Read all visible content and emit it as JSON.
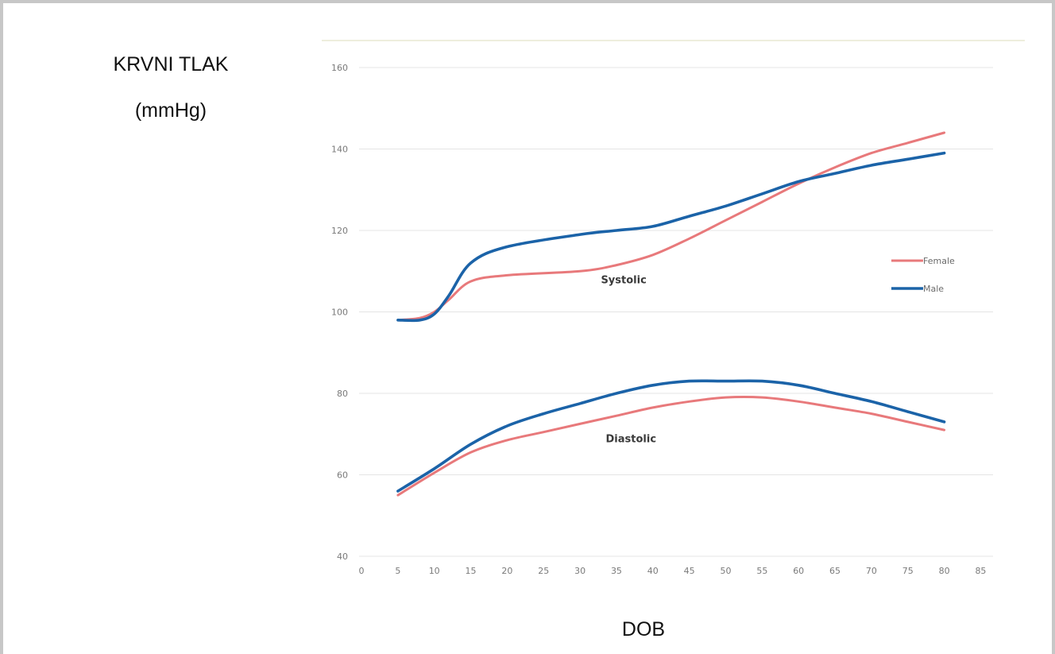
{
  "chart_data": {
    "type": "line",
    "ylabel_line1": "KRVNI TLAK",
    "ylabel_line2": "(mmHg)",
    "xlabel": "DOB",
    "xlim": [
      0,
      85
    ],
    "ylim": [
      40,
      160
    ],
    "x_ticks": [
      0,
      5,
      10,
      15,
      20,
      25,
      30,
      35,
      40,
      45,
      50,
      55,
      60,
      65,
      70,
      75,
      80,
      85
    ],
    "y_ticks": [
      40,
      60,
      80,
      100,
      120,
      140,
      160
    ],
    "grid": "horizontal",
    "legend_position": "right",
    "annotations": [
      {
        "text": "Systolic",
        "x": 36,
        "y": 107
      },
      {
        "text": "Diastolic",
        "x": 37,
        "y": 68
      }
    ],
    "legend": [
      {
        "name": "Female",
        "color": "#e8797b"
      },
      {
        "name": "Male",
        "color": "#1b63a8"
      }
    ],
    "series": [
      {
        "group": "Systolic",
        "name": "Female",
        "color": "#e8797b",
        "x": [
          5,
          8,
          10,
          12,
          15,
          20,
          30,
          35,
          40,
          45,
          50,
          55,
          60,
          65,
          70,
          75,
          80
        ],
        "y": [
          98,
          98.5,
          100,
          103,
          107.5,
          109,
          110,
          111.5,
          114,
          118,
          122.5,
          127,
          131.5,
          135.5,
          139,
          141.5,
          144
        ]
      },
      {
        "group": "Systolic",
        "name": "Male",
        "color": "#1b63a8",
        "x": [
          5,
          8,
          10,
          12,
          15,
          20,
          30,
          35,
          40,
          45,
          50,
          55,
          60,
          65,
          70,
          75,
          80
        ],
        "y": [
          98,
          98,
          99.5,
          104,
          112,
          116,
          119,
          120,
          121,
          123.5,
          126,
          129,
          132,
          134,
          136,
          137.5,
          139
        ]
      },
      {
        "group": "Diastolic",
        "name": "Female",
        "color": "#e8797b",
        "x": [
          5,
          10,
          15,
          20,
          25,
          30,
          35,
          40,
          45,
          50,
          55,
          60,
          65,
          70,
          75,
          80
        ],
        "y": [
          55,
          60.5,
          65.5,
          68.5,
          70.5,
          72.5,
          74.5,
          76.5,
          78,
          79,
          79,
          78,
          76.5,
          75,
          73,
          71
        ]
      },
      {
        "group": "Diastolic",
        "name": "Male",
        "color": "#1b63a8",
        "x": [
          5,
          10,
          15,
          20,
          25,
          30,
          35,
          40,
          45,
          50,
          55,
          60,
          65,
          70,
          75,
          80
        ],
        "y": [
          56,
          61.5,
          67.5,
          72,
          75,
          77.5,
          80,
          82,
          83,
          83,
          83,
          82,
          80,
          78,
          75.5,
          73
        ]
      }
    ]
  }
}
